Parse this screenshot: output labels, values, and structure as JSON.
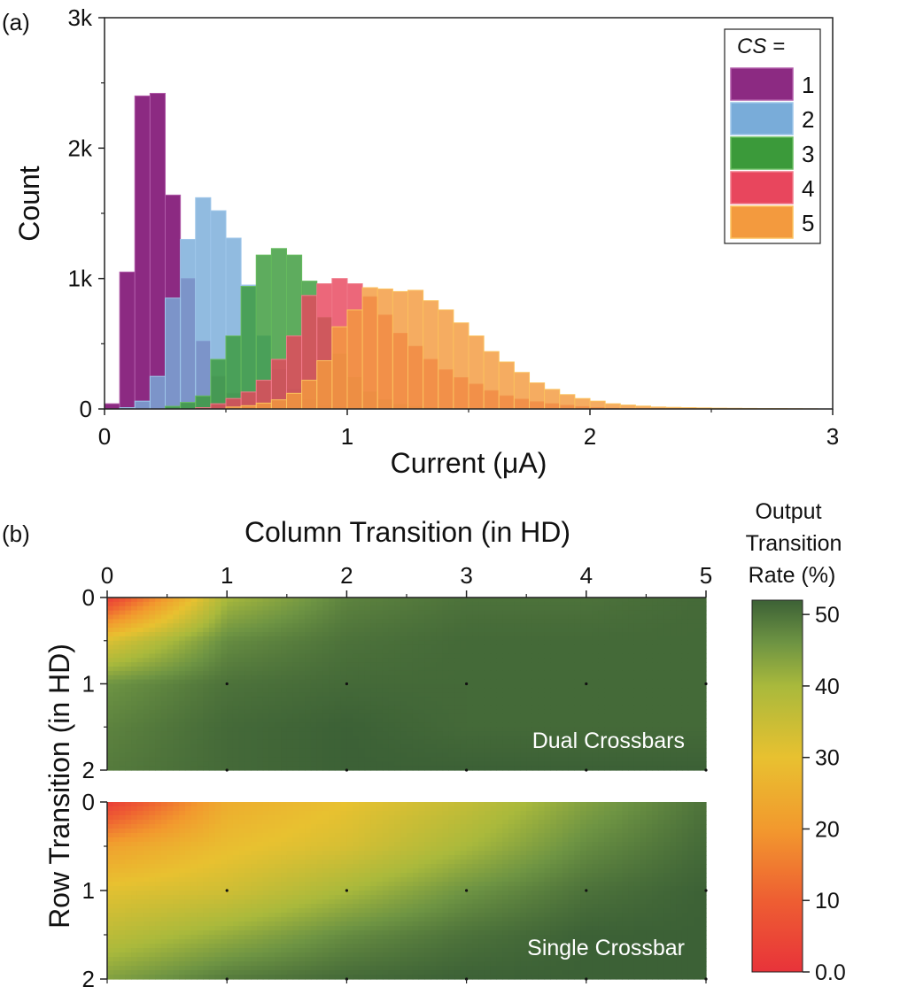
{
  "chart_data": [
    {
      "panel_label": "(a)",
      "type": "bar",
      "subtype": "overlaid histogram",
      "xlabel": "Current (μA)",
      "ylabel": "Count",
      "xlim": [
        0,
        3
      ],
      "ylim": [
        0,
        3000
      ],
      "xticks": [
        0,
        1,
        2,
        3
      ],
      "xtick_labels": [
        "0",
        "1",
        "2",
        "3"
      ],
      "yticks": [
        0,
        1000,
        2000,
        3000
      ],
      "ytick_labels": [
        "0",
        "1k",
        "2k",
        "3k"
      ],
      "bin_width": 0.0625,
      "legend": {
        "title": "CS =",
        "position": "top-right"
      },
      "series": [
        {
          "name": "1",
          "color": "#8c2a82",
          "edge": "#b05aa8",
          "bin_start": [
            0.0,
            0.0625,
            0.125,
            0.1875,
            0.25,
            0.3125,
            0.375,
            0.4375,
            0.5,
            0.5625,
            0.625,
            0.6875,
            0.75,
            0.8125,
            0.875,
            0.9375
          ],
          "values": [
            40,
            1050,
            2400,
            2420,
            1640,
            1000,
            520,
            250,
            120,
            60,
            30,
            15,
            8,
            4,
            2,
            1
          ]
        },
        {
          "name": "2",
          "color": "#79acd9",
          "edge": "#9fc7ea",
          "bin_start": [
            0.0625,
            0.125,
            0.1875,
            0.25,
            0.3125,
            0.375,
            0.4375,
            0.5,
            0.5625,
            0.625,
            0.6875,
            0.75,
            0.8125,
            0.875,
            0.9375,
            1.0,
            1.0625,
            1.125
          ],
          "values": [
            10,
            60,
            250,
            850,
            1300,
            1620,
            1520,
            1310,
            950,
            560,
            300,
            150,
            70,
            30,
            15,
            8,
            4,
            2
          ]
        },
        {
          "name": "3",
          "color": "#3b9a3a",
          "edge": "#66bb5e",
          "bin_start": [
            0.25,
            0.3125,
            0.375,
            0.4375,
            0.5,
            0.5625,
            0.625,
            0.6875,
            0.75,
            0.8125,
            0.875,
            0.9375,
            1.0,
            1.0625,
            1.125,
            1.1875,
            1.25,
            1.3125,
            1.375,
            1.4375
          ],
          "values": [
            20,
            50,
            100,
            380,
            560,
            940,
            1180,
            1230,
            1180,
            980,
            700,
            420,
            240,
            130,
            70,
            35,
            18,
            9,
            4,
            2
          ]
        },
        {
          "name": "4",
          "color": "#e8465d",
          "edge": "#f07a8a",
          "bin_start": [
            0.375,
            0.4375,
            0.5,
            0.5625,
            0.625,
            0.6875,
            0.75,
            0.8125,
            0.875,
            0.9375,
            1.0,
            1.0625,
            1.125,
            1.1875,
            1.25,
            1.3125,
            1.375,
            1.4375,
            1.5,
            1.5625,
            1.625,
            1.6875,
            1.75,
            1.8125,
            1.875,
            1.9375,
            2.0,
            2.0625
          ],
          "values": [
            10,
            40,
            80,
            130,
            220,
            380,
            560,
            870,
            960,
            1000,
            960,
            860,
            720,
            580,
            480,
            380,
            300,
            240,
            190,
            140,
            100,
            75,
            55,
            40,
            28,
            18,
            10,
            5
          ]
        },
        {
          "name": "5",
          "color": "#f39a3e",
          "edge": "#fbc15e",
          "bin_start": [
            0.5,
            0.5625,
            0.625,
            0.6875,
            0.75,
            0.8125,
            0.875,
            0.9375,
            1.0,
            1.0625,
            1.125,
            1.1875,
            1.25,
            1.3125,
            1.375,
            1.4375,
            1.5,
            1.5625,
            1.625,
            1.6875,
            1.75,
            1.8125,
            1.875,
            1.9375,
            2.0,
            2.0625,
            2.125,
            2.1875,
            2.25,
            2.3125,
            2.375,
            2.4375,
            2.5,
            2.5625,
            2.625,
            2.6875,
            2.75,
            2.8125,
            2.875
          ],
          "values": [
            15,
            25,
            45,
            70,
            120,
            220,
            370,
            630,
            760,
            930,
            920,
            900,
            910,
            830,
            760,
            660,
            560,
            440,
            360,
            280,
            200,
            150,
            110,
            80,
            60,
            40,
            30,
            22,
            15,
            12,
            10,
            8,
            6,
            5,
            4,
            3,
            3,
            2,
            1
          ]
        }
      ]
    },
    {
      "panel_label": "(b)",
      "type": "heatmap",
      "xlabel": "Column Transition (in HD)",
      "ylabel": "Row Transition (in HD)",
      "xlim": [
        0,
        5
      ],
      "ylim": [
        0,
        2
      ],
      "xticks": [
        0,
        1,
        2,
        3,
        4,
        5
      ],
      "xtick_labels": [
        "0",
        "1",
        "2",
        "3",
        "4",
        "5"
      ],
      "yticks": [
        0,
        1,
        2
      ],
      "ytick_labels": [
        "0",
        "1",
        "2"
      ],
      "colorbar": {
        "title": [
          "Output",
          "Transition",
          "Rate (%)"
        ],
        "range": [
          0,
          52
        ],
        "ticks": [
          0,
          10,
          20,
          30,
          40,
          50
        ],
        "tick_labels": [
          "0.0",
          "10",
          "20",
          "30",
          "40",
          "50"
        ],
        "stops": [
          {
            "value": 0,
            "color": "#e8333a"
          },
          {
            "value": 10,
            "color": "#ee5e32"
          },
          {
            "value": 20,
            "color": "#f2992e"
          },
          {
            "value": 30,
            "color": "#e8c130"
          },
          {
            "value": 40,
            "color": "#a9b93c"
          },
          {
            "value": 46,
            "color": "#6e9443"
          },
          {
            "value": 52,
            "color": "#3c6136"
          }
        ]
      },
      "panels": [
        {
          "label": "Dual Crossbars",
          "row_values": [
            0,
            0.5,
            1,
            1.5,
            2
          ],
          "col_values": [
            0,
            1,
            2,
            3,
            4,
            5
          ],
          "values": [
            [
              2,
              40,
              48,
              50,
              50,
              51
            ],
            [
              32,
              47,
              50,
              51,
              51,
              51
            ],
            [
              46,
              50,
              51,
              51,
              51,
              51
            ],
            [
              48,
              51,
              52,
              51,
              51,
              51
            ],
            [
              49,
              51,
              52,
              52,
              52,
              52
            ]
          ]
        },
        {
          "label": "Single Crossbar",
          "row_values": [
            0,
            0.5,
            1,
            1.5,
            2
          ],
          "col_values": [
            0,
            1,
            2,
            3,
            4,
            5
          ],
          "values": [
            [
              2,
              25,
              30,
              36,
              44,
              50
            ],
            [
              22,
              29,
              33,
              40,
              47,
              51
            ],
            [
              31,
              34,
              40,
              46,
              50,
              52
            ],
            [
              37,
              42,
              47,
              50,
              52,
              52
            ],
            [
              44,
              49,
              51,
              52,
              52,
              52
            ]
          ]
        }
      ]
    }
  ]
}
